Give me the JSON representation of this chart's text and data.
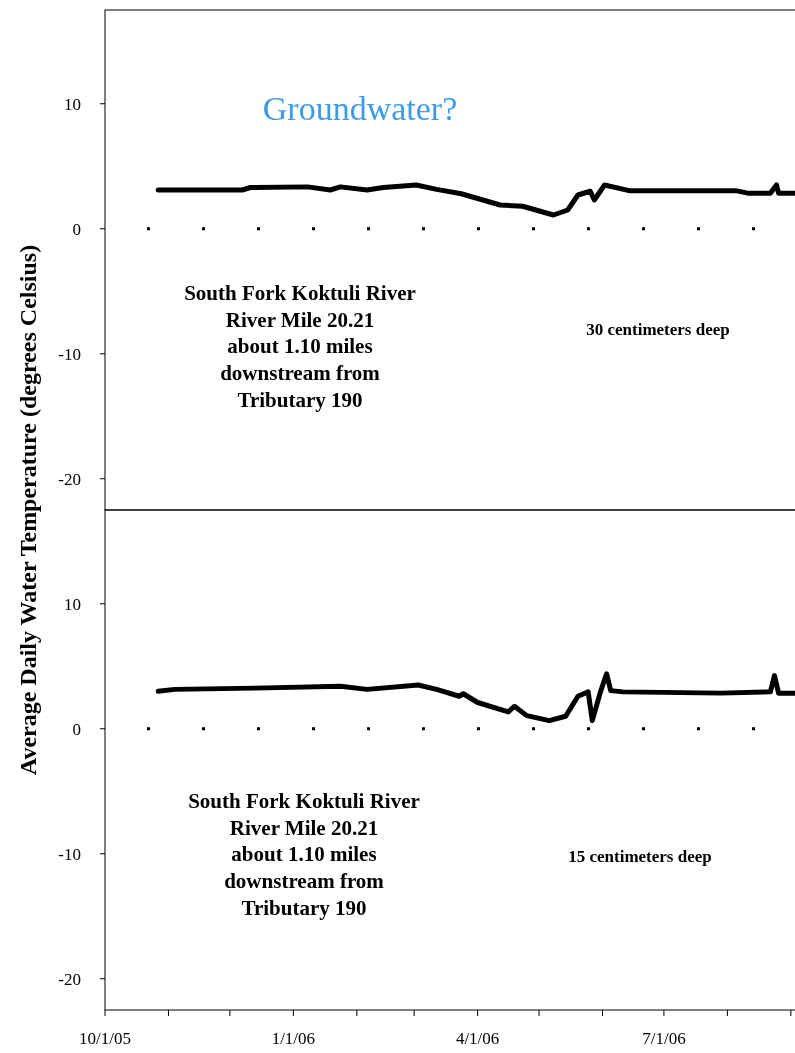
{
  "chart_data": [
    {
      "type": "line",
      "ylabel": "Average Daily Water Temperature (degrees Celsius)",
      "annotations": [
        "Groundwater?",
        "South Fork Koktuli River\nRiver Mile 20.21\nabout 1.10 miles\ndownstream from\nTributary 190",
        "30 centimeters deep"
      ],
      "xlim": [
        "2005-10-01",
        "2006-09-04"
      ],
      "tick_labels": "y",
      "ylim": [
        -22.5,
        17.5
      ],
      "yticks": [
        -20,
        -10,
        0,
        10
      ],
      "ref_lines": [
        {
          "axis": "y",
          "value": 0,
          "line_style": "dotted"
        }
      ],
      "series": [
        {
          "color": "#000000",
          "x": [
            "2005-10-27",
            "2005-12-07",
            "2005-12-11",
            "2006-01-08",
            "2006-01-19",
            "2006-01-24",
            "2006-02-06",
            "2006-02-14",
            "2006-03-02",
            "2006-03-12",
            "2006-03-24",
            "2006-04-12",
            "2006-04-23",
            "2006-05-08",
            "2006-05-15",
            "2006-05-20",
            "2006-05-26",
            "2006-05-28",
            "2006-06-02",
            "2006-06-14",
            "2006-08-05",
            "2006-08-11",
            "2006-08-22",
            "2006-08-25",
            "2006-08-26",
            "2006-09-04"
          ],
          "values": [
            3.1,
            3.1,
            3.3,
            3.35,
            3.1,
            3.35,
            3.1,
            3.3,
            3.5,
            3.15,
            2.8,
            1.9,
            1.8,
            1.1,
            1.5,
            2.7,
            3.0,
            2.3,
            3.5,
            3.05,
            3.05,
            2.85,
            2.85,
            3.5,
            2.85,
            2.85
          ]
        }
      ]
    },
    {
      "type": "line",
      "annotations": [
        "South Fork Koktuli River\nRiver Mile 20.21\nabout 1.10 miles\ndownstream from\nTributary 190",
        "15 centimeters deep"
      ],
      "xlim": [
        "2005-10-01",
        "2006-09-04"
      ],
      "xticks": [
        {
          "value": "2005-10-01",
          "label": "10/1/05"
        },
        {
          "value": "2005-11-01",
          "label": null
        },
        {
          "value": "2005-12-01",
          "label": null
        },
        {
          "value": "2006-01-01",
          "label": "1/1/06"
        },
        {
          "value": "2006-02-01",
          "label": null
        },
        {
          "value": "2006-03-01",
          "label": null
        },
        {
          "value": "2006-04-01",
          "label": "4/1/06"
        },
        {
          "value": "2006-05-01",
          "label": null
        },
        {
          "value": "2006-06-01",
          "label": null
        },
        {
          "value": "2006-07-01",
          "label": "7/1/06"
        },
        {
          "value": "2006-08-01",
          "label": null
        },
        {
          "value": "2006-09-01",
          "label": null
        }
      ],
      "ylim": [
        -22.5,
        17.5
      ],
      "yticks": [
        -20,
        -10,
        0,
        10
      ],
      "ref_lines": [
        {
          "axis": "y",
          "value": 0,
          "line_style": "dotted"
        }
      ],
      "series": [
        {
          "color": "#000000",
          "x": [
            "2005-10-27",
            "2005-11-04",
            "2005-12-13",
            "2006-01-24",
            "2006-02-06",
            "2006-03-03",
            "2006-03-12",
            "2006-03-23",
            "2006-03-25",
            "2006-04-01",
            "2006-04-16",
            "2006-04-19",
            "2006-04-25",
            "2006-05-06",
            "2006-05-14",
            "2006-05-20",
            "2006-05-25",
            "2006-05-27",
            "2006-05-31",
            "2006-06-03",
            "2006-06-05",
            "2006-06-11",
            "2006-07-29",
            "2006-08-22",
            "2006-08-24",
            "2006-08-26",
            "2006-09-04"
          ],
          "values": [
            3.0,
            3.15,
            3.25,
            3.4,
            3.15,
            3.5,
            3.15,
            2.6,
            2.8,
            2.1,
            1.35,
            1.8,
            1.05,
            0.65,
            1.0,
            2.6,
            2.95,
            0.65,
            2.95,
            4.4,
            3.05,
            2.95,
            2.85,
            2.95,
            4.25,
            2.85,
            2.85
          ]
        }
      ]
    }
  ]
}
